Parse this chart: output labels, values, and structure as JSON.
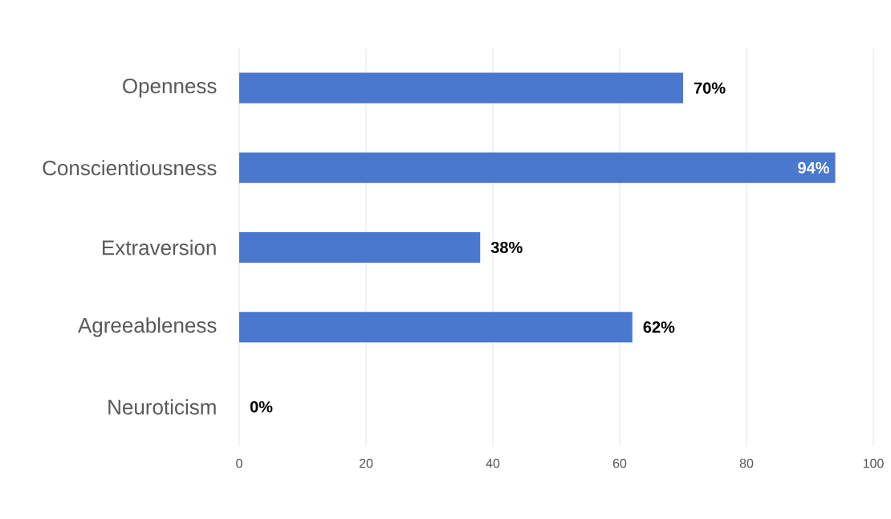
{
  "chart_data": {
    "type": "bar",
    "orientation": "horizontal",
    "categories": [
      "Openness",
      "Conscientiousness",
      "Extraversion",
      "Agreeableness",
      "Neuroticism"
    ],
    "values": [
      70,
      94,
      38,
      62,
      0
    ],
    "value_labels": [
      "70%",
      "94%",
      "38%",
      "62%",
      "0%"
    ],
    "color": "#4a78cf",
    "xlim": [
      0,
      100
    ],
    "xticks": [
      0,
      20,
      40,
      60,
      80,
      100
    ],
    "grid": "x"
  }
}
